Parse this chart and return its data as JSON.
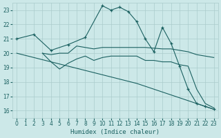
{
  "xlabel": "Humidex (Indice chaleur)",
  "xlim": [
    -0.5,
    23.5
  ],
  "ylim": [
    15.5,
    23.5
  ],
  "yticks": [
    16,
    17,
    18,
    19,
    20,
    21,
    22,
    23
  ],
  "xticks": [
    0,
    1,
    2,
    3,
    4,
    5,
    6,
    7,
    8,
    9,
    10,
    11,
    12,
    13,
    14,
    15,
    16,
    17,
    18,
    19,
    20,
    21,
    22,
    23
  ],
  "bg_color": "#cce8e8",
  "grid_color": "#aacccc",
  "line_color": "#1a6060",
  "lines": [
    {
      "x": [
        0,
        2,
        4,
        6,
        8,
        10,
        11,
        12,
        13,
        14,
        15,
        16,
        17,
        18,
        19,
        20,
        21,
        22,
        23
      ],
      "y": [
        21,
        21.3,
        20.2,
        20.6,
        21.1,
        23.3,
        23.0,
        23.2,
        22.9,
        22.2,
        21.0,
        20.1,
        21.8,
        20.7,
        19.1,
        17.5,
        16.5,
        16.3,
        16.1
      ],
      "marker": true
    },
    {
      "x": [
        3,
        4,
        5,
        6,
        7,
        8,
        9,
        10,
        11,
        12,
        13,
        14,
        15,
        16,
        17,
        18,
        19,
        20,
        21,
        22,
        23
      ],
      "y": [
        20.0,
        19.9,
        20.0,
        20.0,
        20.5,
        20.4,
        20.3,
        20.4,
        20.4,
        20.4,
        20.4,
        20.4,
        20.4,
        20.35,
        20.3,
        20.3,
        20.2,
        20.1,
        19.9,
        19.8,
        19.7
      ],
      "marker": false
    },
    {
      "x": [
        3,
        4,
        5,
        6,
        7,
        8,
        9,
        10,
        11,
        12,
        13,
        14,
        15,
        16,
        17,
        18,
        19,
        20,
        21,
        22,
        23
      ],
      "y": [
        20.0,
        19.4,
        18.9,
        19.3,
        19.6,
        19.8,
        19.5,
        19.7,
        19.8,
        19.8,
        19.8,
        19.8,
        19.5,
        19.5,
        19.4,
        19.4,
        19.2,
        19.1,
        17.5,
        16.5,
        16.2
      ],
      "marker": false
    },
    {
      "x": [
        0,
        4,
        6,
        8,
        10,
        12,
        14,
        16,
        17,
        18,
        19,
        20,
        21,
        22,
        23
      ],
      "y": [
        20.0,
        19.4,
        19.1,
        18.8,
        18.5,
        18.2,
        17.9,
        17.5,
        17.3,
        17.1,
        16.9,
        16.7,
        16.5,
        16.3,
        16.1
      ],
      "marker": false
    }
  ]
}
